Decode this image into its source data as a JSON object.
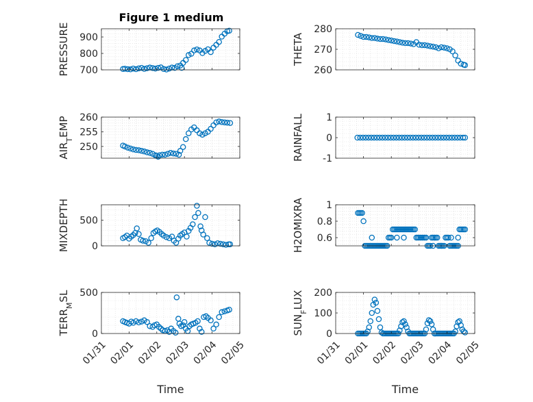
{
  "figure": {
    "title": "Figure 1 medium"
  },
  "chart_data": [
    {
      "type": "scatter",
      "title": "Figure 1 medium",
      "ylabel": "PRESSURE",
      "xlabel": "",
      "ylim": [
        700,
        950
      ],
      "yticks": [
        "700",
        "800",
        "900"
      ],
      "ytick_values": [
        700,
        800,
        900
      ],
      "xlim": [
        0,
        5
      ],
      "grid": true,
      "marker_color": "#0072BD",
      "x": [
        0.78,
        0.85,
        0.95,
        1.05,
        1.15,
        1.25,
        1.35,
        1.45,
        1.55,
        1.65,
        1.75,
        1.85,
        1.95,
        2.05,
        2.15,
        2.25,
        2.35,
        2.45,
        2.55,
        2.65,
        2.75,
        2.85,
        2.9,
        2.95,
        3.05,
        3.15,
        3.25,
        3.35,
        3.45,
        3.55,
        3.65,
        3.75,
        3.85,
        3.95,
        4.05,
        4.15,
        4.25,
        4.35,
        4.45,
        4.55,
        4.62
      ],
      "y": [
        705,
        707,
        704,
        703,
        708,
        704,
        709,
        712,
        706,
        710,
        714,
        711,
        708,
        712,
        715,
        705,
        702,
        708,
        714,
        712,
        722,
        726,
        712,
        742,
        760,
        790,
        798,
        818,
        824,
        818,
        802,
        815,
        825,
        808,
        835,
        852,
        870,
        902,
        920,
        935,
        938
      ]
    },
    {
      "type": "scatter",
      "ylabel": "THETA",
      "xlabel": "",
      "ylim": [
        260,
        280
      ],
      "yticks": [
        "260",
        "270",
        "280"
      ],
      "ytick_values": [
        260,
        270,
        280
      ],
      "xlim": [
        0,
        5
      ],
      "grid": true,
      "marker_color": "#0072BD",
      "x": [
        0.8,
        0.9,
        1.0,
        1.1,
        1.2,
        1.3,
        1.4,
        1.5,
        1.6,
        1.7,
        1.8,
        1.9,
        2.0,
        2.1,
        2.2,
        2.3,
        2.4,
        2.5,
        2.6,
        2.7,
        2.8,
        2.9,
        3.0,
        3.1,
        3.2,
        3.3,
        3.4,
        3.5,
        3.6,
        3.7,
        3.8,
        3.9,
        4.0,
        4.1,
        4.2,
        4.3,
        4.4,
        4.5,
        4.6,
        4.65
      ],
      "y": [
        277,
        276.5,
        276,
        276,
        275.8,
        275.5,
        275.5,
        275.2,
        275,
        275,
        274.8,
        274.5,
        274.3,
        274,
        273.8,
        273.5,
        273.2,
        273,
        273,
        272.8,
        272.5,
        273.5,
        272.2,
        272,
        272,
        271.8,
        271.5,
        271.3,
        271,
        270.5,
        271,
        270.8,
        270.5,
        270,
        269,
        267,
        264.5,
        263,
        262.5,
        262.3
      ]
    },
    {
      "type": "scatter",
      "ylabel": "AIR_TEMP",
      "xlabel": "",
      "ylim": [
        246,
        260
      ],
      "yticks": [
        "250",
        "255",
        "260"
      ],
      "ytick_values": [
        250,
        255,
        260
      ],
      "xlim": [
        0,
        5
      ],
      "grid": true,
      "marker_color": "#0072BD",
      "x": [
        0.78,
        0.85,
        0.95,
        1.05,
        1.15,
        1.25,
        1.35,
        1.45,
        1.55,
        1.65,
        1.75,
        1.85,
        1.95,
        2.0,
        2.05,
        2.1,
        2.2,
        2.3,
        2.4,
        2.5,
        2.6,
        2.7,
        2.8,
        2.85,
        2.95,
        3.05,
        3.15,
        3.25,
        3.35,
        3.45,
        3.55,
        3.65,
        3.75,
        3.85,
        3.95,
        4.05,
        4.15,
        4.25,
        4.35,
        4.45,
        4.55,
        4.65
      ],
      "y": [
        250.3,
        250,
        249.6,
        249.3,
        249,
        248.8,
        248.7,
        248.5,
        248.3,
        248,
        247.8,
        247.5,
        247,
        246.8,
        246.5,
        247,
        247.2,
        247.2,
        247.5,
        247.8,
        247.6,
        247.5,
        247.2,
        248.5,
        249.8,
        252.5,
        254.5,
        255.8,
        256.5,
        255.5,
        254.5,
        254,
        254.5,
        255,
        256,
        257.2,
        258.2,
        258.5,
        258.3,
        258.2,
        258.1,
        258
      ]
    },
    {
      "type": "scatter",
      "ylabel": "RAINFALL",
      "xlabel": "",
      "ylim": [
        -1,
        1
      ],
      "yticks": [
        "-1",
        "0",
        "1"
      ],
      "ytick_values": [
        -1,
        0,
        1
      ],
      "xlim": [
        0,
        5
      ],
      "grid": true,
      "marker_color": "#0072BD",
      "x": [
        0.78,
        0.88,
        0.98,
        1.08,
        1.18,
        1.28,
        1.38,
        1.48,
        1.58,
        1.68,
        1.78,
        1.88,
        1.98,
        2.08,
        2.18,
        2.28,
        2.38,
        2.48,
        2.58,
        2.68,
        2.78,
        2.88,
        2.98,
        3.08,
        3.18,
        3.28,
        3.38,
        3.48,
        3.58,
        3.68,
        3.78,
        3.88,
        3.98,
        4.08,
        4.18,
        4.28,
        4.38,
        4.48,
        4.58,
        4.65
      ],
      "y": [
        0,
        0,
        0,
        0,
        0,
        0,
        0,
        0,
        0,
        0,
        0,
        0,
        0,
        0,
        0,
        0,
        0,
        0,
        0,
        0,
        0,
        0,
        0,
        0,
        0,
        0,
        0,
        0,
        0,
        0,
        0,
        0,
        0,
        0,
        0,
        0,
        0,
        0,
        0,
        0
      ]
    },
    {
      "type": "scatter",
      "ylabel": "MIXDEPTH",
      "xlabel": "",
      "ylim": [
        0,
        800
      ],
      "yticks": [
        "0",
        "500"
      ],
      "ytick_values": [
        0,
        500
      ],
      "xlim": [
        0,
        5
      ],
      "grid": true,
      "marker_color": "#0072BD",
      "x": [
        0.78,
        0.85,
        0.92,
        1.0,
        1.08,
        1.15,
        1.22,
        1.28,
        1.35,
        1.42,
        1.5,
        1.6,
        1.7,
        1.8,
        1.88,
        1.95,
        2.02,
        2.1,
        2.18,
        2.25,
        2.35,
        2.45,
        2.55,
        2.62,
        2.7,
        2.78,
        2.85,
        2.92,
        3.0,
        3.08,
        3.15,
        3.22,
        3.3,
        3.38,
        3.45,
        3.5,
        3.58,
        3.62,
        3.68,
        3.75,
        3.82,
        3.9,
        4.0,
        4.1,
        4.2,
        4.3,
        4.4,
        4.5,
        4.6,
        4.65
      ],
      "y": [
        150,
        170,
        200,
        140,
        180,
        210,
        250,
        340,
        230,
        120,
        100,
        90,
        60,
        150,
        250,
        280,
        300,
        270,
        230,
        200,
        170,
        150,
        180,
        100,
        60,
        140,
        200,
        230,
        260,
        180,
        290,
        350,
        420,
        560,
        780,
        640,
        380,
        300,
        220,
        560,
        150,
        60,
        40,
        30,
        50,
        40,
        30,
        20,
        30,
        30
      ]
    },
    {
      "type": "scatter",
      "ylabel": "H2OMIXRA",
      "xlabel": "",
      "ylim": [
        0.5,
        1.0
      ],
      "yticks": [
        "0.6",
        "0.8",
        "1"
      ],
      "ytick_values": [
        0.6,
        0.8,
        1.0
      ],
      "xlim": [
        0,
        5
      ],
      "grid": true,
      "marker_color": "#0072BD",
      "x": [
        0.8,
        0.85,
        0.9,
        0.95,
        1.0,
        1.05,
        1.1,
        1.15,
        1.2,
        1.25,
        1.3,
        1.35,
        1.4,
        1.45,
        1.5,
        1.55,
        1.6,
        1.65,
        1.7,
        1.75,
        1.8,
        1.85,
        1.9,
        1.95,
        2.0,
        2.05,
        2.1,
        2.15,
        2.2,
        2.25,
        2.3,
        2.35,
        2.4,
        2.45,
        2.5,
        2.55,
        2.6,
        2.65,
        2.7,
        2.75,
        2.8,
        2.85,
        2.9,
        2.95,
        3.0,
        3.05,
        3.1,
        3.15,
        3.2,
        3.25,
        3.3,
        3.35,
        3.4,
        3.45,
        3.5,
        3.55,
        3.6,
        3.65,
        3.7,
        3.75,
        3.8,
        3.85,
        3.9,
        3.95,
        4.0,
        4.05,
        4.1,
        4.15,
        4.2,
        4.25,
        4.3,
        4.35,
        4.4,
        4.45,
        4.5,
        4.55,
        4.6,
        4.65,
        1.3,
        2.2,
        2.45,
        3.5,
        3.8,
        4.15,
        4.4
      ],
      "y": [
        0.9,
        0.9,
        0.9,
        0.9,
        0.8,
        0.5,
        0.5,
        0.5,
        0.5,
        0.5,
        0.5,
        0.5,
        0.5,
        0.5,
        0.5,
        0.5,
        0.5,
        0.5,
        0.5,
        0.5,
        0.5,
        0.5,
        0.6,
        0.6,
        0.6,
        0.7,
        0.7,
        0.7,
        0.7,
        0.7,
        0.7,
        0.7,
        0.7,
        0.7,
        0.7,
        0.7,
        0.7,
        0.7,
        0.7,
        0.7,
        0.7,
        0.7,
        0.6,
        0.6,
        0.6,
        0.6,
        0.6,
        0.6,
        0.6,
        0.6,
        0.5,
        0.5,
        0.5,
        0.6,
        0.6,
        0.6,
        0.6,
        0.6,
        0.5,
        0.5,
        0.5,
        0.5,
        0.5,
        0.6,
        0.6,
        0.6,
        0.5,
        0.5,
        0.5,
        0.5,
        0.5,
        0.5,
        0.5,
        0.7,
        0.7,
        0.7,
        0.7,
        0.7,
        0.6,
        0.6,
        0.6,
        0.5,
        0.5,
        0.6,
        0.6
      ]
    },
    {
      "type": "scatter",
      "ylabel": "TERR_MSL",
      "xlabel": "Time",
      "ylim": [
        0,
        500
      ],
      "yticks": [
        "0",
        "500"
      ],
      "ytick_values": [
        0,
        500
      ],
      "xlim": [
        0,
        5
      ],
      "xticks": [
        "01/31",
        "02/01",
        "02/02",
        "02/03",
        "02/04",
        "02/05"
      ],
      "xtick_values": [
        0,
        1,
        2,
        3,
        4,
        5
      ],
      "grid": true,
      "marker_color": "#0072BD",
      "x": [
        0.78,
        0.85,
        0.92,
        1.0,
        1.08,
        1.15,
        1.25,
        1.35,
        1.45,
        1.55,
        1.65,
        1.75,
        1.85,
        1.92,
        2.0,
        2.08,
        2.15,
        2.22,
        2.3,
        2.38,
        2.45,
        2.52,
        2.6,
        2.68,
        2.72,
        2.78,
        2.82,
        2.88,
        2.95,
        3.0,
        3.05,
        3.12,
        3.18,
        3.25,
        3.32,
        3.4,
        3.48,
        3.55,
        3.62,
        3.7,
        3.78,
        3.85,
        3.95,
        4.05,
        4.15,
        4.25,
        4.35,
        4.45,
        4.55,
        4.62
      ],
      "y": [
        150,
        140,
        130,
        120,
        145,
        130,
        150,
        135,
        145,
        160,
        140,
        90,
        80,
        100,
        110,
        80,
        60,
        40,
        30,
        40,
        20,
        60,
        30,
        10,
        440,
        180,
        120,
        90,
        100,
        140,
        60,
        30,
        90,
        110,
        120,
        130,
        150,
        60,
        20,
        200,
        210,
        190,
        160,
        60,
        110,
        200,
        260,
        270,
        280,
        290
      ]
    },
    {
      "type": "scatter",
      "ylabel": "SUN_FLUX",
      "xlabel": "Time",
      "ylim": [
        0,
        200
      ],
      "yticks": [
        "0",
        "100",
        "200"
      ],
      "ytick_values": [
        0,
        100,
        200
      ],
      "xlim": [
        0,
        5
      ],
      "xticks": [
        "01/31",
        "02/01",
        "02/02",
        "02/03",
        "02/04",
        "02/05"
      ],
      "xtick_values": [
        0,
        1,
        2,
        3,
        4,
        5
      ],
      "grid": true,
      "marker_color": "#0072BD",
      "x": [
        0.8,
        0.85,
        0.9,
        0.95,
        1.0,
        1.05,
        1.1,
        1.15,
        1.2,
        1.25,
        1.3,
        1.35,
        1.4,
        1.45,
        1.5,
        1.55,
        1.6,
        1.65,
        1.7,
        1.75,
        1.8,
        1.85,
        1.9,
        1.95,
        2.0,
        2.05,
        2.1,
        2.15,
        2.2,
        2.25,
        2.3,
        2.35,
        2.4,
        2.45,
        2.5,
        2.55,
        2.6,
        2.65,
        2.7,
        2.75,
        2.8,
        2.85,
        2.9,
        2.95,
        3.0,
        3.05,
        3.1,
        3.15,
        3.2,
        3.25,
        3.3,
        3.35,
        3.4,
        3.45,
        3.5,
        3.55,
        3.6,
        3.65,
        3.7,
        3.75,
        3.8,
        3.85,
        3.9,
        3.95,
        4.0,
        4.05,
        4.1,
        4.15,
        4.2,
        4.25,
        4.3,
        4.35,
        4.4,
        4.45,
        4.5,
        4.55,
        4.6,
        4.65
      ],
      "y": [
        0,
        0,
        0,
        0,
        0,
        0,
        0,
        10,
        30,
        60,
        100,
        140,
        165,
        150,
        110,
        70,
        30,
        5,
        0,
        0,
        0,
        0,
        0,
        0,
        0,
        0,
        0,
        0,
        0,
        0,
        15,
        35,
        55,
        60,
        45,
        30,
        10,
        0,
        0,
        0,
        0,
        0,
        0,
        0,
        0,
        0,
        0,
        0,
        0,
        20,
        50,
        65,
        60,
        45,
        20,
        0,
        0,
        0,
        0,
        0,
        0,
        0,
        0,
        0,
        0,
        0,
        0,
        0,
        0,
        0,
        10,
        35,
        55,
        60,
        40,
        20,
        10,
        5
      ]
    }
  ]
}
